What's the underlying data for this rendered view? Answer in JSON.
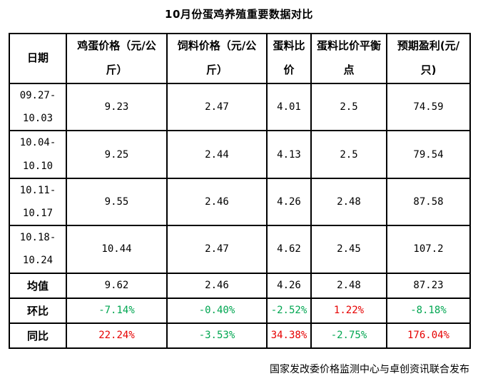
{
  "title": "10月份蛋鸡养殖重要数据对比",
  "footer": "国家发改委价格监测中心与卓创资讯联合发布",
  "colors": {
    "positive_red": "#e60000",
    "negative_green": "#00a651",
    "text_black": "#000000",
    "border_black": "#000000"
  },
  "table": {
    "columns": [
      "日期",
      "鸡蛋价格（元/公\n斤）",
      "饲料价格（元/公\n斤）",
      "蛋料比\n价",
      "蛋料比价平衡\n点",
      "预期盈利(元/\n只)"
    ],
    "rows": [
      {
        "label": "09.27-\n10.03",
        "type": "data",
        "values": [
          "9.23",
          "2.47",
          "4.01",
          "2.5",
          "74.59"
        ]
      },
      {
        "label": "10.04-\n10.10",
        "type": "data",
        "values": [
          "9.25",
          "2.44",
          "4.13",
          "2.5",
          "79.54"
        ]
      },
      {
        "label": "10.11-\n10.17",
        "type": "data",
        "values": [
          "9.55",
          "2.46",
          "4.26",
          "2.48",
          "87.58"
        ]
      },
      {
        "label": "10.18-\n10.24",
        "type": "data",
        "values": [
          "10.44",
          "2.47",
          "4.62",
          "2.45",
          "107.2"
        ]
      },
      {
        "label": "均值",
        "type": "summary",
        "values": [
          "9.62",
          "2.46",
          "4.26",
          "2.48",
          "87.23"
        ]
      },
      {
        "label": "环比",
        "type": "percent",
        "values": [
          "-7.14%",
          "-0.40%",
          "-2.52%",
          "1.22%",
          "-8.18%"
        ]
      },
      {
        "label": "同比",
        "type": "percent",
        "values": [
          "22.24%",
          "-3.53%",
          "34.38%",
          "-2.75%",
          "176.04%"
        ]
      }
    ]
  }
}
